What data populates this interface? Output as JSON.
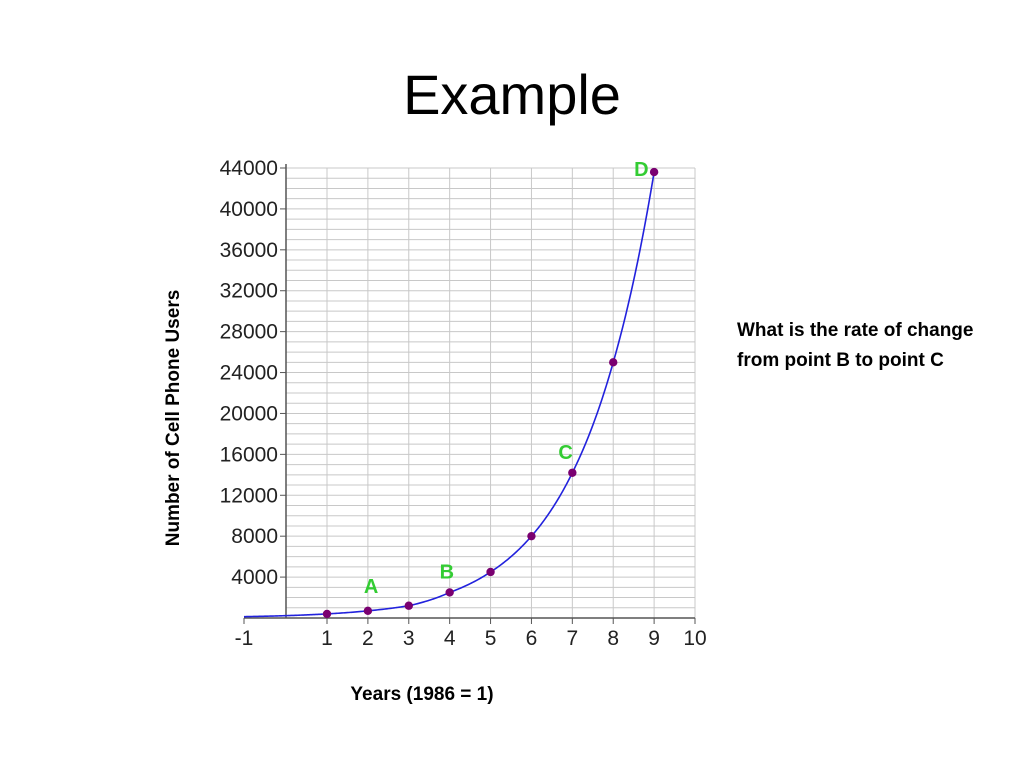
{
  "slide": {
    "title": "Example",
    "question": "What is the rate of change from point B to point C"
  },
  "chart_data": {
    "type": "line",
    "title": "",
    "xlabel": "Years (1986 = 1)",
    "ylabel": "Number of Cell Phone Users",
    "xlim": [
      -1,
      10
    ],
    "ylim": [
      0,
      44000
    ],
    "x_ticks": [
      -1,
      1,
      2,
      3,
      4,
      5,
      6,
      7,
      8,
      9,
      10
    ],
    "y_ticks": [
      4000,
      8000,
      12000,
      16000,
      20000,
      24000,
      28000,
      32000,
      36000,
      40000,
      44000
    ],
    "grid": true,
    "line_color": "#2222dd",
    "point_color": "#7a0070",
    "label_color": "#33cc33",
    "curve": {
      "x_start": -1,
      "x_end": 9
    },
    "points": [
      {
        "x": 1,
        "y": 400
      },
      {
        "x": 2,
        "y": 700
      },
      {
        "x": 3,
        "y": 1200
      },
      {
        "x": 4,
        "y": 2500
      },
      {
        "x": 5,
        "y": 4500
      },
      {
        "x": 6,
        "y": 8000
      },
      {
        "x": 7,
        "y": 14200
      },
      {
        "x": 8,
        "y": 25000
      },
      {
        "x": 9,
        "y": 43600
      }
    ],
    "annotations": [
      {
        "label": "A",
        "x": 2,
        "y": 700
      },
      {
        "label": "B",
        "x": 4,
        "y": 2500
      },
      {
        "label": "C",
        "x": 7,
        "y": 14200
      },
      {
        "label": "D",
        "x": 9,
        "y": 43600
      }
    ]
  }
}
